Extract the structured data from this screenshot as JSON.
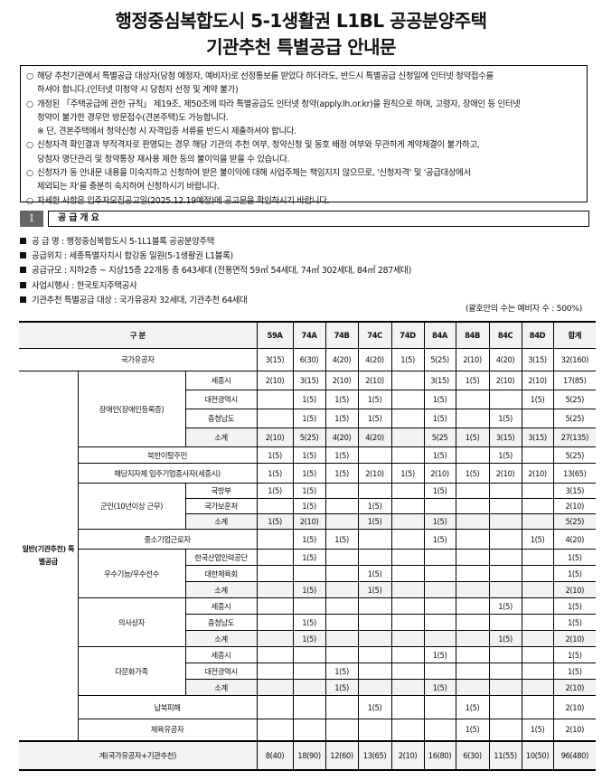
{
  "title": {
    "line1": "행정중심복합도시 5-1생활권 L1BL 공공분양주택",
    "line2": "기관추천 특별공급 안내문"
  },
  "notice": {
    "bullet_icon": "circle-bullet",
    "items": [
      {
        "lines": [
          "해당 추천기관에서 특별공급 대상자(당첨 예정자, 예비자)로 선정통보를 받았다 하더라도, 반드시 특별공급 신청일에 인터넷 청약접수를",
          "하셔야 합니다.(인터넷 미청약 시 당첨자 선정 및 계약 불가)"
        ]
      },
      {
        "lines": [
          "개정된 「주택공급에 관한 규칙」 제19조, 제50조에 따라 특별공급도 인터넷 청약(apply.lh.or.kr)을 원칙으로 하며, 고령자, 장애인 등 인터넷",
          "청약이 불가한 경우만 방문접수(견본주택)도 가능합니다."
        ],
        "note": "※ 단, 견본주택에서 청약신청 시 자격입증 서류를 반드시 제출하셔야 합니다."
      },
      {
        "lines": [
          "신청자격 확인결과 부적격자로 판명되는 경우 해당 기관의 추천 여부, 청약신청 및 동호 배정 여부와 무관하게 계약체결이 불가하고,",
          "당첨자 명단관리 및 청약통장 재사용 제한 등의 불이익을 받을 수 있습니다."
        ]
      },
      {
        "lines": [
          "신청자가 동 안내문 내용을 미숙지하고 신청하여 받은 불이익에 대해 사업주체는 책임지지 않으므로, '신청자격' 및 '공급대상에서",
          "제외되는 자'를 충분히 숙지하여 신청하시기 바랍니다."
        ]
      },
      {
        "lines": [
          "자세한 사항은 입주자모집공고일(2025.12.19예정)에 공고문을 확인하시기 바랍니다."
        ]
      }
    ]
  },
  "section": {
    "number": "I",
    "title": "공급개요"
  },
  "overview": {
    "bullet_icon": "square-bullet",
    "items": [
      "공 급 명 : 행정중심복합도시 5-1L1블록 공공분양주택",
      "공급위치 : 세종특별자치시 합강동 일원(5-1생활권 L1블록)",
      "공급규모 : 지하2층 ~ 지상15층 22개동 총 643세대 (전용면적 59㎡ 54세대, 74㎡ 302세대, 84㎡ 287세대)",
      "사업시행사 : 한국토지주택공사",
      "기관추천 특별공급 대상 : 국가유공자 32세대, 기관추천 64세대"
    ],
    "note": "(괄호안의 수는 예비자 수 : 500%)"
  },
  "table": {
    "header_label": "구 분",
    "columns": [
      "59A",
      "74A",
      "74B",
      "74C",
      "74D",
      "84A",
      "84B",
      "84C",
      "84D",
      "합계"
    ],
    "top_row": {
      "label": "국가유공자",
      "values": [
        "3(15)",
        "6(30)",
        "4(20)",
        "4(20)",
        "1(5)",
        "5(25)",
        "2(10)",
        "4(20)",
        "3(15)",
        "32(160)"
      ]
    },
    "group": {
      "label": "일반(기관추천) 특별공급",
      "children": [
        {
          "label": "장애인(장애인등록증)",
          "sub": [
            {
              "label": "세종시",
              "values": [
                "2(10)",
                "3(15)",
                "2(10)",
                "2(10)",
                "",
                "3(15)",
                "1(5)",
                "2(10)",
                "2(10)",
                "17(85)"
              ]
            },
            {
              "label": "대전광역시",
              "values": [
                "",
                "1(5)",
                "1(5)",
                "1(5)",
                "",
                "1(5)",
                "",
                "",
                "1(5)",
                "5(25)"
              ]
            },
            {
              "label": "충청남도",
              "values": [
                "",
                "1(5)",
                "1(5)",
                "1(5)",
                "",
                "1(5)",
                "",
                "1(5)",
                "",
                "5(25)"
              ]
            },
            {
              "label": "소계",
              "subtotal": true,
              "values": [
                "2(10)",
                "5(25)",
                "4(20)",
                "4(20)",
                "",
                "5(25",
                "1(5)",
                "3(15)",
                "3(15)",
                "27(135)"
              ]
            }
          ]
        },
        {
          "label": "북한이탈주민",
          "values": [
            "1(5)",
            "1(5)",
            "1(5)",
            "",
            "",
            "1(5)",
            "",
            "1(5)",
            "",
            "5(25)"
          ]
        },
        {
          "label": "해당지자체 입주기업종사자(세종시)",
          "values": [
            "1(5)",
            "1(5)",
            "1(5)",
            "2(10)",
            "1(5)",
            "2(10)",
            "1(5)",
            "2(10)",
            "2(10)",
            "13(65)"
          ]
        },
        {
          "label": "군인(10년이상 근무)",
          "sub": [
            {
              "label": "국방부",
              "values": [
                "1(5)",
                "1(5)",
                "",
                "",
                "",
                "1(5)",
                "",
                "",
                "",
                "3(15)"
              ]
            },
            {
              "label": "국가보훈처",
              "values": [
                "",
                "1(5)",
                "",
                "1(5)",
                "",
                "",
                "",
                "",
                "",
                "2(10)"
              ]
            },
            {
              "label": "소계",
              "subtotal": true,
              "values": [
                "1(5)",
                "2(10)",
                "",
                "1(5)",
                "",
                "1(5)",
                "",
                "",
                "",
                "5(25)"
              ]
            }
          ]
        },
        {
          "label": "중소기업근로자",
          "values": [
            "",
            "1(5)",
            "1(5)",
            "",
            "",
            "1(5)",
            "",
            "",
            "1(5)",
            "4(20)"
          ]
        },
        {
          "label": "우수기능/우수선수",
          "sub": [
            {
              "label": "한국산업인력공단",
              "values": [
                "",
                "1(5)",
                "",
                "",
                "",
                "",
                "",
                "",
                "",
                "1(5)"
              ]
            },
            {
              "label": "대한체육회",
              "values": [
                "",
                "",
                "",
                "1(5)",
                "",
                "",
                "",
                "",
                "",
                "1(5)"
              ]
            },
            {
              "label": "소계",
              "subtotal": true,
              "values": [
                "",
                "1(5)",
                "",
                "1(5)",
                "",
                "",
                "",
                "",
                "",
                "2(10)"
              ]
            }
          ]
        },
        {
          "label": "의사상자",
          "sub": [
            {
              "label": "세종시",
              "values": [
                "",
                "",
                "",
                "",
                "",
                "",
                "",
                "1(5)",
                "",
                "1(5)"
              ]
            },
            {
              "label": "충청남도",
              "values": [
                "",
                "1(5)",
                "",
                "",
                "",
                "",
                "",
                "",
                "",
                "1(5)"
              ]
            },
            {
              "label": "소계",
              "subtotal": true,
              "values": [
                "",
                "1(5)",
                "",
                "",
                "",
                "",
                "",
                "1(5)",
                "",
                "2(10)"
              ]
            }
          ]
        },
        {
          "label": "다문화가족",
          "sub": [
            {
              "label": "세종시",
              "values": [
                "",
                "",
                "",
                "",
                "",
                "1(5)",
                "",
                "",
                "",
                "1(5)"
              ]
            },
            {
              "label": "대전광역시",
              "values": [
                "",
                "",
                "1(5)",
                "",
                "",
                "",
                "",
                "",
                "",
                "1(5)"
              ]
            },
            {
              "label": "소계",
              "subtotal": true,
              "values": [
                "",
                "",
                "1(5)",
                "",
                "",
                "1(5)",
                "",
                "",
                "",
                "2(10)"
              ]
            }
          ]
        },
        {
          "label": "납북피해",
          "values": [
            "",
            "",
            "",
            "1(5)",
            "",
            "",
            "1(5)",
            "",
            "",
            "2(10)"
          ]
        },
        {
          "label": "체육유공자",
          "values": [
            "",
            "",
            "",
            "",
            "",
            "",
            "1(5)",
            "",
            "1(5)",
            "2(10)"
          ]
        }
      ]
    },
    "total_row": {
      "label": "계(국가유공자+기관추천)",
      "values": [
        "8(40)",
        "18(90)",
        "12(60)",
        "13(65)",
        "2(10)",
        "16(80)",
        "6(30)",
        "11(55)",
        "10(50)",
        "96(480)"
      ]
    }
  }
}
